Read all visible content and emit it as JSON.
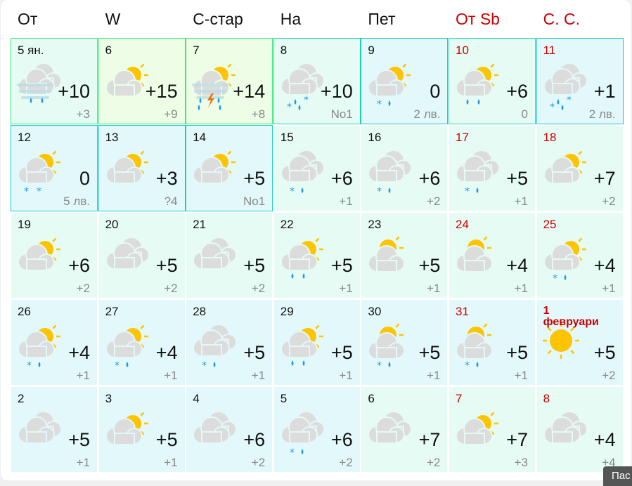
{
  "weekdays": [
    {
      "label": "От",
      "weekend": false
    },
    {
      "label": "W",
      "weekend": false
    },
    {
      "label": "С-стар",
      "weekend": false
    },
    {
      "label": "На",
      "weekend": false
    },
    {
      "label": "Пет",
      "weekend": false
    },
    {
      "label": "От Sb",
      "weekend": true
    },
    {
      "label": "С. С.",
      "weekend": true
    }
  ],
  "colors": {
    "weekend": "#cc0000",
    "sun": "#ffc400",
    "cloud": "#dcdcdc",
    "rain": "#1e9ce8",
    "bg_mint": "#e5fbf3",
    "bg_cyan": "#e3f8fa",
    "bg_green": "#edfde6"
  },
  "days": [
    {
      "day": "5 ян.",
      "icon": "cloudy",
      "precip": "fog-rain",
      "temp": "+10",
      "night": "+3",
      "bg": "mint",
      "border": "#38e87a"
    },
    {
      "day": "6",
      "icon": "partly-sunny",
      "precip": "",
      "temp": "+15",
      "night": "+9",
      "bg": "green",
      "border": "#38e87a"
    },
    {
      "day": "7",
      "icon": "partly-sunny",
      "precip": "fog-thunder",
      "temp": "+14",
      "night": "+8",
      "bg": "green",
      "border": "#38e87a"
    },
    {
      "day": "8",
      "icon": "cloudy",
      "precip": "mix2",
      "temp": "+10",
      "night": "No1",
      "bg": "mint",
      "border": "#1fd6b0"
    },
    {
      "day": "9",
      "icon": "partly-sunny",
      "precip": "snow-rain",
      "temp": "0",
      "night": "2 лв.",
      "bg": "cyan",
      "border": "#18c8cc"
    },
    {
      "day": "10",
      "icon": "partly-sunny",
      "precip": "rain",
      "temp": "+6",
      "night": "0",
      "bg": "mint",
      "border": "#1fd6b0",
      "weekend": true
    },
    {
      "day": "11",
      "icon": "cloudy",
      "precip": "mix2",
      "temp": "+1",
      "night": "2 лв.",
      "bg": "cyan",
      "border": "#18c8cc",
      "weekend": true
    },
    {
      "day": "12",
      "icon": "partly-sunny",
      "precip": "snow",
      "temp": "0",
      "night": "5 лв.",
      "bg": "cyan",
      "border": "#18c8cc"
    },
    {
      "day": "13",
      "icon": "partly-sunny",
      "precip": "",
      "temp": "+3",
      "night": "?4",
      "bg": "cyan",
      "border": "#18c8cc"
    },
    {
      "day": "14",
      "icon": "partly-sunny",
      "precip": "",
      "temp": "+5",
      "night": "No1",
      "bg": "cyan",
      "border": "#1fd6b0"
    },
    {
      "day": "15",
      "icon": "cloudy",
      "precip": "snow-rain",
      "temp": "+6",
      "night": "+1",
      "bg": "mint"
    },
    {
      "day": "16",
      "icon": "cloudy",
      "precip": "snow-rain",
      "temp": "+6",
      "night": "+2",
      "bg": "mint"
    },
    {
      "day": "17",
      "icon": "cloudy",
      "precip": "snow-rain",
      "temp": "+5",
      "night": "+1",
      "bg": "mint",
      "weekend": true
    },
    {
      "day": "18",
      "icon": "partly-sunny",
      "precip": "",
      "temp": "+7",
      "night": "+2",
      "bg": "mint",
      "weekend": true
    },
    {
      "day": "19",
      "icon": "partly-sunny",
      "precip": "",
      "temp": "+6",
      "night": "+2",
      "bg": "mint"
    },
    {
      "day": "20",
      "icon": "cloudy",
      "precip": "",
      "temp": "+5",
      "night": "+2",
      "bg": "mint"
    },
    {
      "day": "21",
      "icon": "cloudy",
      "precip": "",
      "temp": "+5",
      "night": "+2",
      "bg": "mint"
    },
    {
      "day": "22",
      "icon": "partly-sunny",
      "precip": "rain",
      "temp": "+5",
      "night": "+1",
      "bg": "mint"
    },
    {
      "day": "23",
      "icon": "mostly-sunny",
      "precip": "",
      "temp": "+5",
      "night": "+1",
      "bg": "mint"
    },
    {
      "day": "24",
      "icon": "mostly-sunny",
      "precip": "",
      "temp": "+4",
      "night": "+1",
      "bg": "mint",
      "weekend": true
    },
    {
      "day": "25",
      "icon": "partly-sunny",
      "precip": "snow-rain",
      "temp": "+4",
      "night": "+1",
      "bg": "mint",
      "weekend": true
    },
    {
      "day": "26",
      "icon": "partly-sunny",
      "precip": "snow-rain",
      "temp": "+4",
      "night": "+1",
      "bg": "cyan"
    },
    {
      "day": "27",
      "icon": "partly-sunny",
      "precip": "snow-rain",
      "temp": "+4",
      "night": "+1",
      "bg": "cyan"
    },
    {
      "day": "28",
      "icon": "cloudy",
      "precip": "snow-rain",
      "temp": "+5",
      "night": "+1",
      "bg": "cyan"
    },
    {
      "day": "29",
      "icon": "partly-sunny",
      "precip": "rain",
      "temp": "+5",
      "night": "+1",
      "bg": "cyan"
    },
    {
      "day": "30",
      "icon": "mostly-sunny",
      "precip": "snow-rain",
      "temp": "+5",
      "night": "+1",
      "bg": "cyan"
    },
    {
      "day": "31",
      "icon": "mostly-sunny",
      "precip": "snow-rain",
      "temp": "+5",
      "night": "+1",
      "bg": "cyan",
      "weekend": true
    },
    {
      "day": "1",
      "month": "февруари",
      "icon": "sunny",
      "precip": "",
      "temp": "+5",
      "night": "+2",
      "bg": "cyan",
      "weekend": true
    },
    {
      "day": "2",
      "icon": "cloudy",
      "precip": "",
      "temp": "+5",
      "night": "+1",
      "bg": "cyan"
    },
    {
      "day": "3",
      "icon": "partly-sunny",
      "precip": "",
      "temp": "+5",
      "night": "+1",
      "bg": "cyan"
    },
    {
      "day": "4",
      "icon": "cloudy",
      "precip": "",
      "temp": "+6",
      "night": "+2",
      "bg": "cyan"
    },
    {
      "day": "5",
      "icon": "cloudy",
      "precip": "snow-rain",
      "temp": "+6",
      "night": "+2",
      "bg": "cyan"
    },
    {
      "day": "6",
      "icon": "cloudy",
      "precip": "",
      "temp": "+7",
      "night": "+2",
      "bg": "mint"
    },
    {
      "day": "7",
      "icon": "partly-sunny",
      "precip": "",
      "temp": "+7",
      "night": "+3",
      "bg": "mint",
      "weekend": true
    },
    {
      "day": "8",
      "icon": "cloudy",
      "precip": "",
      "temp": "+4",
      "night": "+4",
      "bg": "mint",
      "weekend": true
    }
  ],
  "tooltip_button": "Пас"
}
